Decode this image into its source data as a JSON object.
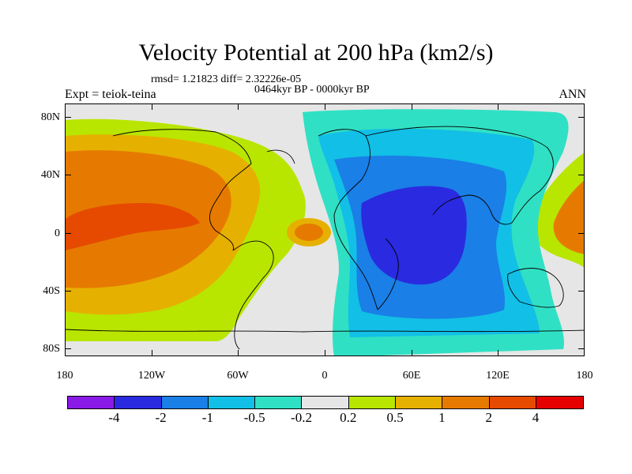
{
  "title": "Velocity Potential at 200 hPa (km2/s)",
  "stats": "rmsd= 1.21823 diff= 2.32226e-05",
  "period": "0464kyr BP - 0000kyr BP",
  "expt": "Expt = teiok-teina",
  "season": "ANN",
  "y_axis": {
    "labels": [
      "80N",
      "40N",
      "0",
      "40S",
      "80S"
    ]
  },
  "x_axis": {
    "labels": [
      "180",
      "120W",
      "60W",
      "0",
      "60E",
      "120E",
      "180"
    ]
  },
  "colorbar": {
    "colors": [
      "#8a1ae6",
      "#2a2ae0",
      "#1a7fe6",
      "#12bfe6",
      "#30e0c4",
      "#e6e6e6",
      "#b8e600",
      "#e6b000",
      "#e67a00",
      "#e64a00",
      "#e60000"
    ],
    "labels": [
      "-4",
      "-2",
      "-1",
      "-0.5",
      "-0.2",
      "0.2",
      "0.5",
      "1",
      "2",
      "4"
    ]
  }
}
